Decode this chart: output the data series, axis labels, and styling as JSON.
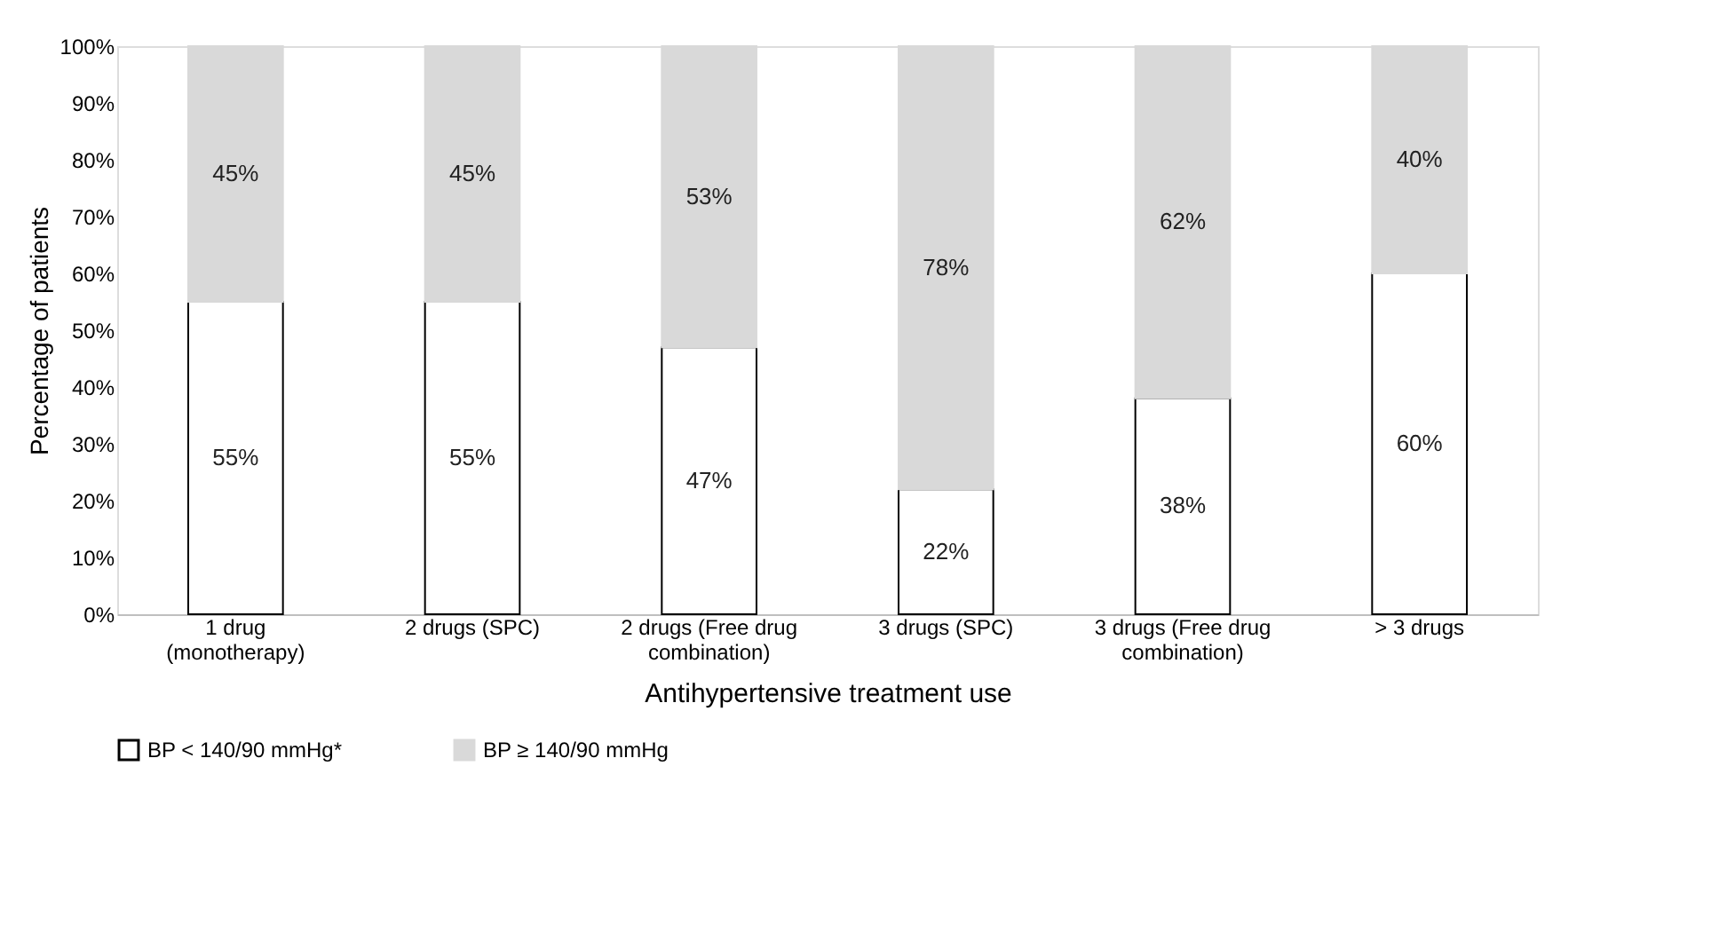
{
  "chart_data": {
    "type": "bar",
    "stacked": true,
    "xlabel": "Antihypertensive treatment use",
    "ylabel": "Percentage of patients",
    "categories": [
      "1 drug (monotherapy)",
      "2 drugs (SPC)",
      "2 drugs (Free drug combination)",
      "3 drugs (SPC)",
      "3 drugs (Free drug combination)",
      "> 3 drugs"
    ],
    "series": [
      {
        "name": "BP < 140/90 mmHg*",
        "color": "#ffffff",
        "values": [
          55,
          55,
          47,
          22,
          38,
          60
        ],
        "value_labels": [
          "55%",
          "55%",
          "47%",
          "22%",
          "38%",
          "60%"
        ]
      },
      {
        "name": "BP ≥ 140/90 mmHg",
        "color": "#d9d9d9",
        "values": [
          45,
          45,
          53,
          78,
          62,
          40
        ],
        "value_labels": [
          "45%",
          "45%",
          "53%",
          "78%",
          "62%",
          "40%"
        ]
      }
    ],
    "ylim": [
      0,
      100
    ],
    "yticks": [
      {
        "value": 0,
        "label": "0%"
      },
      {
        "value": 10,
        "label": "10%"
      },
      {
        "value": 20,
        "label": "20%"
      },
      {
        "value": 30,
        "label": "30%"
      },
      {
        "value": 40,
        "label": "40%"
      },
      {
        "value": 50,
        "label": "50%"
      },
      {
        "value": 60,
        "label": "60%"
      },
      {
        "value": 70,
        "label": "70%"
      },
      {
        "value": 80,
        "label": "80%"
      },
      {
        "value": 90,
        "label": "90%"
      },
      {
        "value": 100,
        "label": "100%"
      }
    ],
    "grid": false,
    "legend": "bottom"
  }
}
